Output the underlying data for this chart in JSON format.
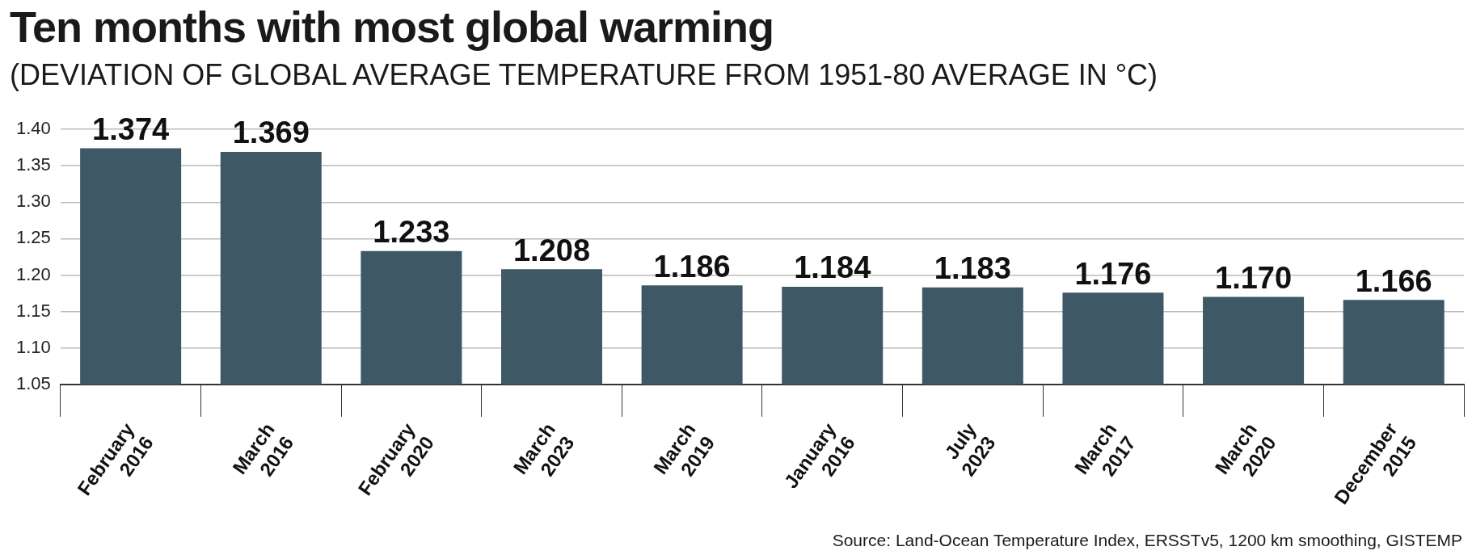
{
  "chart_data": {
    "type": "bar",
    "title": "Ten months with most global warming",
    "subtitle": "(DEVIATION OF GLOBAL AVERAGE TEMPERATURE FROM 1951-80 AVERAGE IN °C)",
    "categories": [
      "February 2016",
      "March 2016",
      "February 2020",
      "March 2023",
      "March 2019",
      "January 2016",
      "July 2023",
      "March 2017",
      "March 2020",
      "December 2015"
    ],
    "values": [
      1.374,
      1.369,
      1.233,
      1.208,
      1.186,
      1.184,
      1.183,
      1.176,
      1.17,
      1.166
    ],
    "value_labels": [
      "1.374",
      "1.369",
      "1.233",
      "1.208",
      "1.186",
      "1.184",
      "1.183",
      "1.176",
      "1.170",
      "1.166"
    ],
    "color": "#3f5866",
    "ylim": [
      1.05,
      1.4
    ],
    "yticks": [
      {
        "value": 1.05,
        "label": "1.05"
      },
      {
        "value": 1.1,
        "label": "1.10"
      },
      {
        "value": 1.15,
        "label": "1.15"
      },
      {
        "value": 1.2,
        "label": "1.20"
      },
      {
        "value": 1.25,
        "label": "1.25"
      },
      {
        "value": 1.3,
        "label": "1.30"
      },
      {
        "value": 1.35,
        "label": "1.35"
      },
      {
        "value": 1.4,
        "label": "1.40"
      }
    ],
    "grid": "y",
    "annotations": [
      "Source: Land-Ocean Temperature Index, ERSSTv5, 1200 km smoothing, GISTEMP"
    ]
  }
}
